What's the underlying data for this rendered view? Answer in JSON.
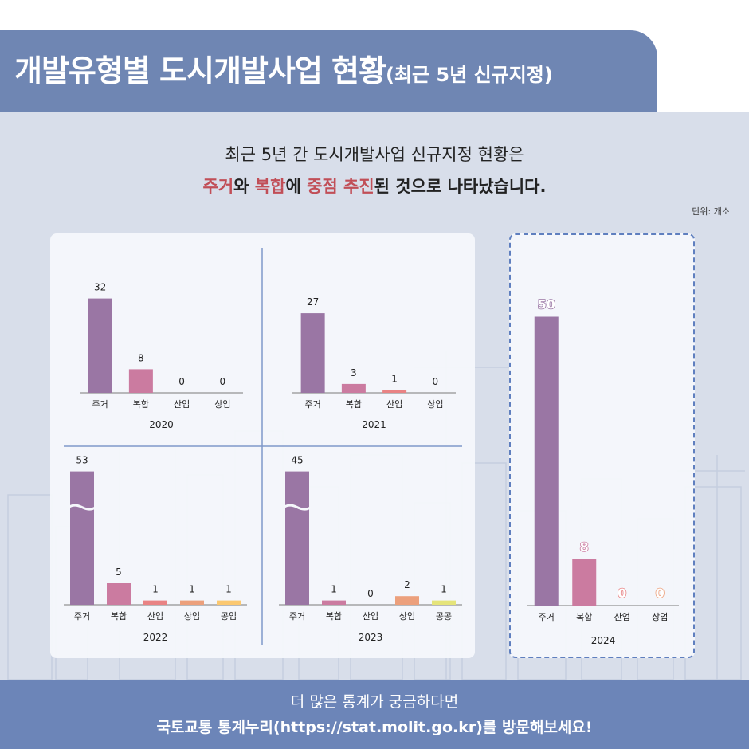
{
  "header": {
    "title": "개발유형별 도시개발사업 현황",
    "subtitle": "(최근 5년 신규지정)"
  },
  "headline": {
    "line1": "최근 5년 간 도시개발사업 신규지정 현황은",
    "line2_parts": [
      "주거",
      "와 ",
      "복합",
      "에 ",
      "중점 추진",
      "된 것으로 나타났습니다."
    ]
  },
  "unit_label": "단위: 개소",
  "footer": {
    "line1": "더 많은 통계가 궁금하다면",
    "line2": "국토교통 통계누리(https://stat.molit.go.kr)를 방문해보세요!"
  },
  "colors": {
    "주거": "#9a76a4",
    "복합": "#cb7ba0",
    "산업": "#e98384",
    "상업": "#eca07c",
    "공업": "#fbc870",
    "공공": "#e5e47a",
    "title_bg": "#6f86b3",
    "highlight": "#c14e57"
  },
  "chart_data": [
    {
      "type": "bar",
      "xlabel": "2020",
      "categories": [
        "주거",
        "복합",
        "산업",
        "상업"
      ],
      "values": [
        32,
        8,
        0,
        0
      ]
    },
    {
      "type": "bar",
      "xlabel": "2021",
      "categories": [
        "주거",
        "복합",
        "산업",
        "상업"
      ],
      "values": [
        27,
        3,
        1,
        0
      ]
    },
    {
      "type": "bar",
      "xlabel": "2022",
      "categories": [
        "주거",
        "복합",
        "산업",
        "상업",
        "공업"
      ],
      "values": [
        53,
        5,
        1,
        1,
        1
      ]
    },
    {
      "type": "bar",
      "xlabel": "2023",
      "categories": [
        "주거",
        "복합",
        "산업",
        "상업",
        "공공"
      ],
      "values": [
        45,
        1,
        0,
        2,
        1
      ]
    },
    {
      "type": "bar",
      "xlabel": "2024",
      "categories": [
        "주거",
        "복합",
        "산업",
        "상업"
      ],
      "values": [
        50,
        8,
        0,
        0
      ]
    }
  ]
}
